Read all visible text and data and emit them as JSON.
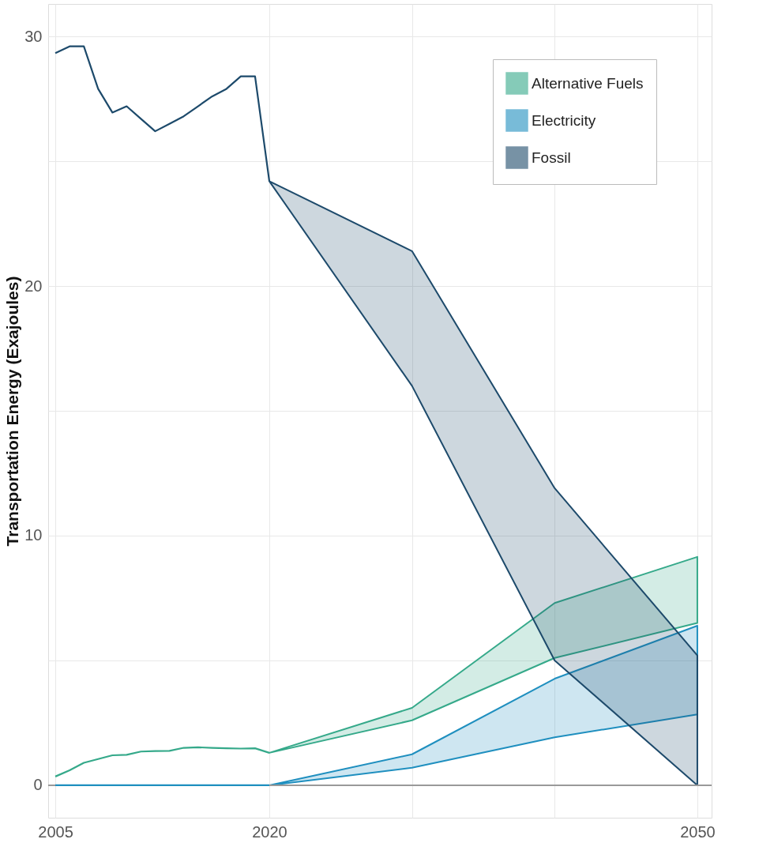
{
  "chart_data": {
    "type": "line",
    "ylabel": "Transportation Energy (Exajoules)",
    "x": [
      2005,
      2006,
      2007,
      2008,
      2009,
      2010,
      2011,
      2012,
      2013,
      2014,
      2015,
      2016,
      2017,
      2018,
      2019,
      2020,
      2030,
      2040,
      2050
    ],
    "series": [
      {
        "name": "Alternative Fuels",
        "color": "#35a98a",
        "values": [
          0.35,
          0.6,
          0.9,
          1.05,
          1.2,
          1.22,
          1.35,
          1.37,
          1.38,
          1.5,
          1.52,
          1.5,
          1.48,
          1.47,
          1.48,
          1.3,
          null,
          null,
          null
        ],
        "lower": [
          null,
          null,
          null,
          null,
          null,
          null,
          null,
          null,
          null,
          null,
          null,
          null,
          null,
          null,
          null,
          1.3,
          2.6,
          5.1,
          6.5
        ],
        "upper": [
          null,
          null,
          null,
          null,
          null,
          null,
          null,
          null,
          null,
          null,
          null,
          null,
          null,
          null,
          null,
          1.3,
          3.1,
          7.3,
          9.15
        ]
      },
      {
        "name": "Electricity",
        "color": "#1f8fbf",
        "values": [
          0,
          0,
          0,
          0,
          0,
          0,
          0,
          0,
          0,
          0,
          0,
          0,
          0,
          0,
          0,
          0,
          null,
          null,
          null
        ],
        "lower": [
          null,
          null,
          null,
          null,
          null,
          null,
          null,
          null,
          null,
          null,
          null,
          null,
          null,
          null,
          null,
          0,
          0.7,
          1.92,
          2.84
        ],
        "upper": [
          null,
          null,
          null,
          null,
          null,
          null,
          null,
          null,
          null,
          null,
          null,
          null,
          null,
          null,
          null,
          0,
          1.24,
          4.27,
          6.39
        ]
      },
      {
        "name": "Fossil",
        "color": "#1d4a6b",
        "values": [
          29.33,
          29.6,
          29.6,
          27.9,
          26.95,
          27.2,
          26.7,
          26.2,
          26.5,
          26.8,
          27.2,
          27.6,
          27.9,
          28.4,
          28.4,
          24.2,
          null,
          null,
          null
        ],
        "lower": [
          null,
          null,
          null,
          null,
          null,
          null,
          null,
          null,
          null,
          null,
          null,
          null,
          null,
          null,
          null,
          24.2,
          16.0,
          5.0,
          0
        ],
        "upper": [
          null,
          null,
          null,
          null,
          null,
          null,
          null,
          null,
          null,
          null,
          null,
          null,
          null,
          null,
          null,
          24.2,
          21.4,
          11.9,
          5.2
        ]
      }
    ],
    "xlim": [
      2004.5,
      2051
    ],
    "ylim": [
      -1.3,
      31.3
    ],
    "xticks": [
      2005,
      2020,
      {
        "value": 2030,
        "label": null
      },
      {
        "value": 2040,
        "label": null
      },
      2050
    ],
    "yticks": [
      0,
      {
        "value": 5,
        "label": null
      },
      10,
      {
        "value": 15,
        "label": null
      },
      20,
      {
        "value": 25,
        "label": null
      },
      30
    ],
    "ref_lines": [
      {
        "axis": "y",
        "value": 0,
        "color": "#999999"
      }
    ],
    "grid": true,
    "legend": "top right",
    "line_style": "solid",
    "marker": "none"
  }
}
